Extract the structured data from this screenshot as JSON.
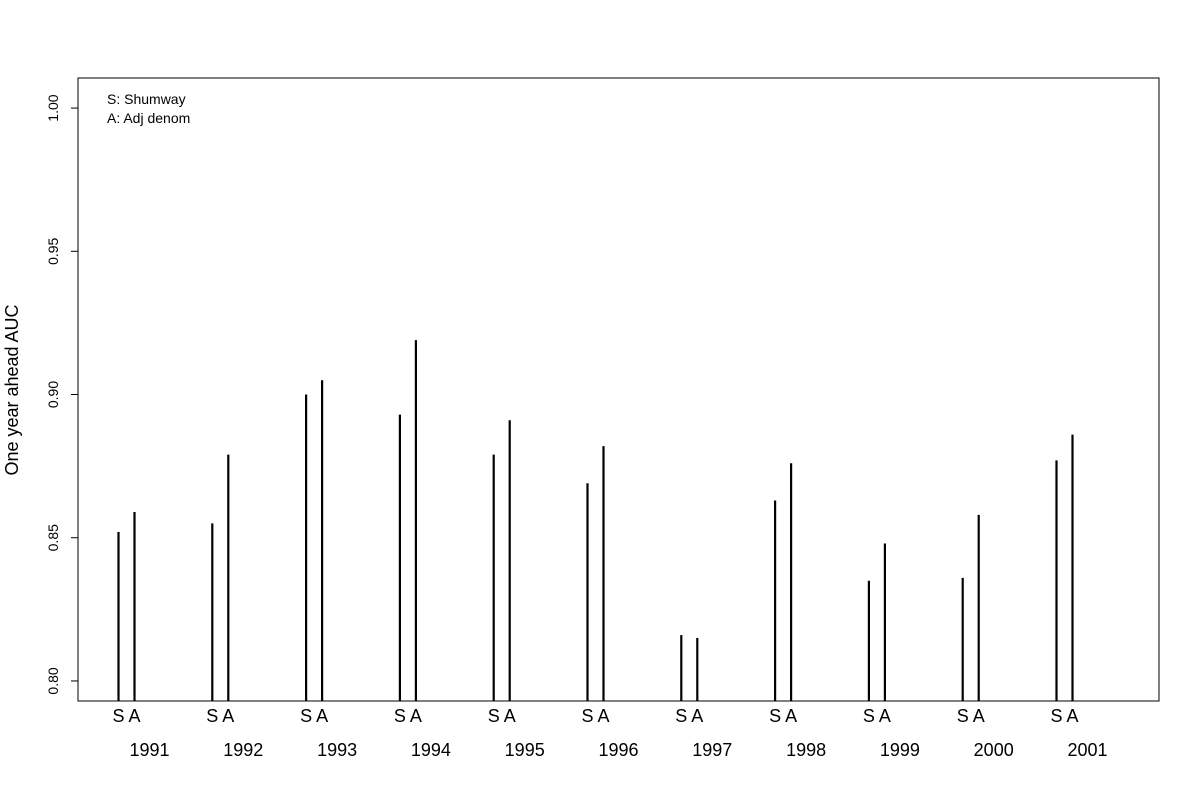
{
  "chart_data": {
    "type": "bar",
    "title": "",
    "xlabel": "",
    "ylabel": "One year ahead AUC",
    "ylim": [
      0.793,
      1.0105
    ],
    "yticks": [
      0.8,
      0.85,
      0.9,
      0.95,
      1.0
    ],
    "ytick_labels": [
      "0.80",
      "0.85",
      "0.90",
      "0.95",
      "1.00"
    ],
    "categories": [
      "1991",
      "1992",
      "1993",
      "1994",
      "1995",
      "1996",
      "1997",
      "1998",
      "1999",
      "2000",
      "2001"
    ],
    "series": [
      {
        "name": "Shumway",
        "values": [
          0.852,
          0.855,
          0.9,
          0.893,
          0.879,
          0.869,
          0.816,
          0.863,
          0.835,
          0.836,
          0.877
        ]
      },
      {
        "name": "Adj denom",
        "values": [
          0.859,
          0.879,
          0.905,
          0.919,
          0.891,
          0.882,
          0.815,
          0.876,
          0.848,
          0.858,
          0.886
        ]
      }
    ],
    "bar_letters": [
      "S",
      "A"
    ],
    "legend": {
      "position": "top-left",
      "entries": [
        "S:  Shumway",
        "A:  Adj denom"
      ]
    },
    "grid": false
  }
}
